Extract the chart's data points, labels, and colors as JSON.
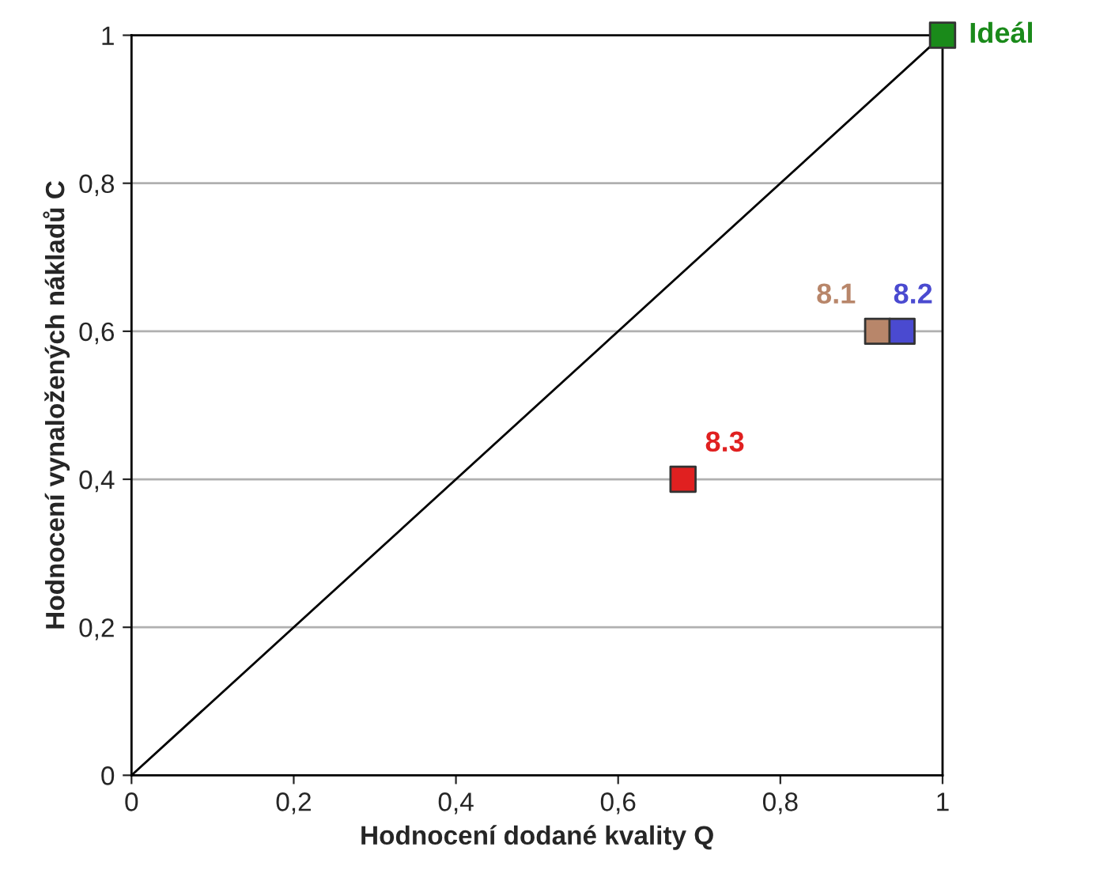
{
  "chart_data": {
    "type": "scatter",
    "xlabel": "Hodnocení dodané kvality Q",
    "ylabel": "Hodnocení vynaložených nákladů C",
    "xlim": [
      0,
      1
    ],
    "ylim": [
      0,
      1
    ],
    "xticks": [
      0,
      {
        "value": 0.2,
        "label": "0,2"
      },
      {
        "value": 0.4,
        "label": "0,4"
      },
      {
        "value": 0.6,
        "label": "0,6"
      },
      {
        "value": 0.8,
        "label": "0,8"
      },
      1
    ],
    "yticks": [
      0,
      {
        "value": 0.2,
        "label": "0,2"
      },
      {
        "value": 0.4,
        "label": "0,4"
      },
      {
        "value": 0.6,
        "label": "0,6"
      },
      {
        "value": 0.8,
        "label": "0,8"
      },
      1
    ],
    "grid": "y",
    "marker": "square",
    "series": [
      {
        "type": "line",
        "marker": "none",
        "color": "#000000",
        "x": [
          0,
          1
        ],
        "values": [
          0,
          1
        ]
      },
      {
        "name": "Ideál",
        "color": "#1a8a1a",
        "x": [
          1
        ],
        "values": [
          1
        ]
      },
      {
        "name": "8.1",
        "color": "#b8866a",
        "x": [
          0.92
        ],
        "values": [
          0.6
        ]
      },
      {
        "name": "8.2",
        "color": "#4a4ad0",
        "x": [
          0.95
        ],
        "values": [
          0.6
        ]
      },
      {
        "name": "8.3",
        "color": "#e02020",
        "x": [
          0.68
        ],
        "values": [
          0.4
        ]
      }
    ]
  }
}
